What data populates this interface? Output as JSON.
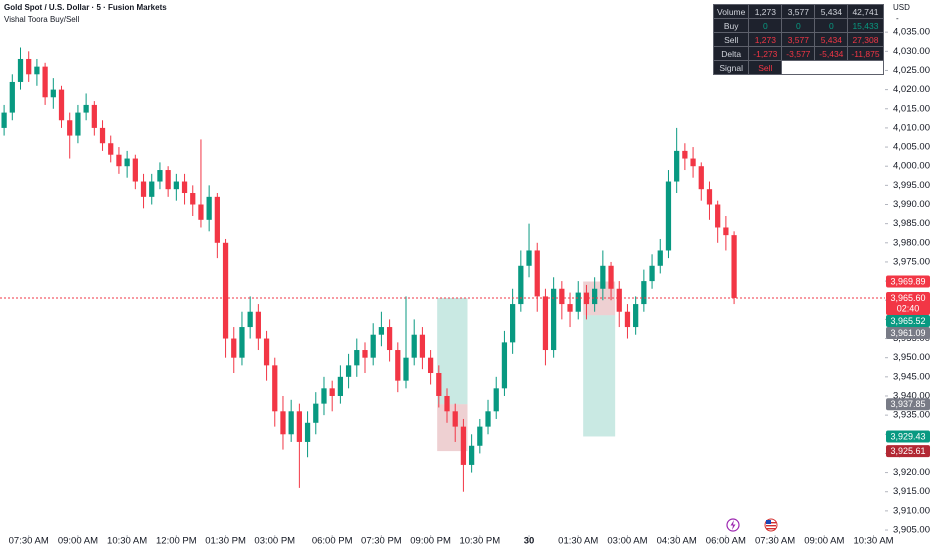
{
  "chart_data": {
    "type": "candlestick",
    "title": "Gold Spot / U.S. Dollar · 5 · Fusion Markets",
    "indicator": "Vishal Toora Buy/Sell",
    "axis_unit": "USD",
    "axis_unit_note": "-",
    "up_color": "#089981",
    "down_color": "#f23645",
    "grid": false,
    "open": [
      4010,
      4014,
      4022,
      4028,
      4024,
      4026,
      4018,
      4020,
      4012,
      4008,
      4014,
      4016,
      4010,
      4006,
      4003,
      4000,
      4002,
      3996,
      3992,
      3996,
      3999,
      3994,
      3996,
      3993,
      3990,
      3986,
      3992,
      3980,
      3955,
      3950,
      3958,
      3962,
      3955,
      3948,
      3936,
      3930,
      3936,
      3928,
      3933,
      3938,
      3942,
      3940,
      3945,
      3948,
      3952,
      3950,
      3956,
      3958,
      3952,
      3944,
      3950,
      3956,
      3950,
      3946,
      3940,
      3936,
      3932,
      3922,
      3927,
      3932,
      3936,
      3942,
      3954,
      3964,
      3974,
      3978,
      3966,
      3952,
      3968,
      3964,
      3962,
      3967,
      3964,
      3968,
      3974,
      3968,
      3962,
      3958,
      3964,
      3970,
      3974,
      3978,
      3996,
      4004,
      4002,
      4000,
      3994,
      3990,
      3984,
      3982
    ],
    "high": [
      4016,
      4024,
      4031,
      4030,
      4028,
      4027,
      4023,
      4021,
      4014,
      4016,
      4019,
      4017,
      4012,
      4008,
      4005,
      4004,
      4003,
      3998,
      3998,
      4001,
      4000,
      3998,
      3998,
      3995,
      4007,
      3995,
      3993,
      3981,
      3958,
      3962,
      3966,
      3964,
      3957,
      3950,
      3940,
      3939,
      3938,
      3936,
      3941,
      3945,
      3944,
      3948,
      3951,
      3955,
      3954,
      3959,
      3962,
      3960,
      3954,
      3966,
      3960,
      3958,
      3952,
      3948,
      3942,
      3938,
      3934,
      3930,
      3934,
      3939,
      3945,
      3957,
      3968,
      3978,
      3985,
      3980,
      3968,
      3971,
      3970,
      3967,
      3970,
      3969,
      3971,
      3978,
      3975,
      3970,
      3964,
      3966,
      3973,
      3977,
      3981,
      3999,
      4010,
      4006,
      4005,
      4001,
      3996,
      3991,
      3987,
      3983
    ],
    "low": [
      4008,
      4012,
      4020,
      4022,
      4021,
      4016,
      4015,
      4010,
      4002,
      4006,
      4012,
      4008,
      4004,
      4001,
      3998,
      3997,
      3994,
      3989,
      3990,
      3994,
      3992,
      3991,
      3990,
      3987,
      3984,
      3983,
      3976,
      3950,
      3946,
      3948,
      3955,
      3952,
      3944,
      3932,
      3926,
      3928,
      3916,
      3924,
      3930,
      3935,
      3936,
      3938,
      3942,
      3945,
      3946,
      3948,
      3953,
      3949,
      3941,
      3942,
      3948,
      3947,
      3943,
      3937,
      3933,
      3928,
      3915,
      3920,
      3925,
      3930,
      3934,
      3940,
      3951,
      3962,
      3971,
      3962,
      3948,
      3950,
      3960,
      3958,
      3960,
      3960,
      3962,
      3965,
      3965,
      3958,
      3955,
      3956,
      3962,
      3968,
      3972,
      3976,
      3993,
      3999,
      3997,
      3991,
      3986,
      3980,
      3978,
      3964
    ],
    "close": [
      4014,
      4022,
      4028,
      4024,
      4026,
      4018,
      4020,
      4012,
      4008,
      4014,
      4016,
      4010,
      4006,
      4003,
      4000,
      4002,
      3996,
      3992,
      3996,
      3999,
      3994,
      3996,
      3993,
      3990,
      3986,
      3992,
      3980,
      3955,
      3950,
      3958,
      3962,
      3955,
      3948,
      3936,
      3930,
      3936,
      3928,
      3933,
      3938,
      3942,
      3940,
      3945,
      3948,
      3952,
      3950,
      3956,
      3958,
      3952,
      3944,
      3950,
      3956,
      3950,
      3946,
      3940,
      3936,
      3932,
      3922,
      3927,
      3932,
      3936,
      3942,
      3954,
      3964,
      3974,
      3978,
      3966,
      3952,
      3968,
      3964,
      3962,
      3967,
      3964,
      3968,
      3974,
      3968,
      3962,
      3958,
      3964,
      3970,
      3974,
      3978,
      3996,
      4004,
      4002,
      4000,
      3994,
      3990,
      3984,
      3982,
      3965.6
    ],
    "xlim": [
      -0.5,
      107.4
    ],
    "xticks": [
      {
        "value": 3,
        "label": "07:30 AM"
      },
      {
        "value": 9,
        "label": "09:00 AM"
      },
      {
        "value": 15,
        "label": "10:30 AM"
      },
      {
        "value": 21,
        "label": "12:00 PM"
      },
      {
        "value": 27,
        "label": "01:30 PM"
      },
      {
        "value": 33,
        "label": "03:00 PM"
      },
      {
        "value": 40,
        "label": "06:00 PM"
      },
      {
        "value": 46,
        "label": "07:30 PM"
      },
      {
        "value": 52,
        "label": "09:00 PM"
      },
      {
        "value": 58,
        "label": "10:30 PM"
      },
      {
        "value": 64,
        "label": "30"
      },
      {
        "value": 70,
        "label": "01:30 AM"
      },
      {
        "value": 76,
        "label": "03:00 AM"
      },
      {
        "value": 82,
        "label": "04:30 AM"
      },
      {
        "value": 88,
        "label": "06:00 AM"
      },
      {
        "value": 94,
        "label": "07:30 AM"
      },
      {
        "value": 100,
        "label": "09:00 AM"
      },
      {
        "value": 106,
        "label": "10:30 AM"
      }
    ],
    "ylim": [
      3903.7,
      4043.4
    ],
    "yticks": [
      {
        "value": 3905,
        "label": "3,905.00"
      },
      {
        "value": 3910,
        "label": "3,910.00"
      },
      {
        "value": 3915,
        "label": "3,915.00"
      },
      {
        "value": 3920,
        "label": "3,920.00"
      },
      {
        "value": 3925,
        "label": "3,925.00"
      },
      {
        "value": 3930,
        "label": "3,930.00"
      },
      {
        "value": 3935,
        "label": "3,935.00"
      },
      {
        "value": 3940,
        "label": "3,940.00"
      },
      {
        "value": 3945,
        "label": "3,945.00"
      },
      {
        "value": 3950,
        "label": "3,950.00"
      },
      {
        "value": 3955,
        "label": "3,955.00"
      },
      {
        "value": 3960,
        "label": "3,960.00"
      },
      {
        "value": 3965,
        "label": "3,965.00"
      },
      {
        "value": 3970,
        "label": "3,970.00"
      },
      {
        "value": 3975,
        "label": "3,975.00"
      },
      {
        "value": 3980,
        "label": "3,980.00"
      },
      {
        "value": 3985,
        "label": "3,985.00"
      },
      {
        "value": 3990,
        "label": "3,990.00"
      },
      {
        "value": 3995,
        "label": "3,995.00"
      },
      {
        "value": 4000,
        "label": "4,000.00"
      },
      {
        "value": 4005,
        "label": "4,005.00"
      },
      {
        "value": 4010,
        "label": "4,010.00"
      },
      {
        "value": 4015,
        "label": "4,015.00"
      },
      {
        "value": 4020,
        "label": "4,020.00"
      },
      {
        "value": 4025,
        "label": "4,025.00"
      },
      {
        "value": 4030,
        "label": "4,030.00"
      },
      {
        "value": 4035,
        "label": "4,035.00"
      }
    ],
    "current_price": 3965.6,
    "price_labels": [
      {
        "value": 3969.89,
        "label": "3,969.89",
        "color": "#f23645"
      },
      {
        "value": 3965.6,
        "label": "3,965.60",
        "color": "#f23645",
        "countdown": "02:40"
      },
      {
        "value": 3965.52,
        "label": "3,965.52",
        "color": "#089981"
      },
      {
        "value": 3961.09,
        "label": "3,961.09",
        "color": "#787b86"
      },
      {
        "value": 3937.85,
        "label": "3,937.85",
        "color": "#787b86"
      },
      {
        "value": 3929.43,
        "label": "3,929.43",
        "color": "#089981"
      },
      {
        "value": 3925.61,
        "label": "3,925.61",
        "color": "#b22833"
      }
    ],
    "zones": [
      {
        "x": [
          52.8,
          56.5
        ],
        "y": [
          3937.85,
          3965.6
        ],
        "color": "#089981"
      },
      {
        "x": [
          52.8,
          56.5
        ],
        "y": [
          3925.61,
          3937.85
        ],
        "color": "#b22833"
      },
      {
        "x": [
          70.6,
          74.5
        ],
        "y": [
          3929.43,
          3961.09
        ],
        "color": "#089981"
      },
      {
        "x": [
          70.6,
          74.5
        ],
        "y": [
          3961.09,
          3969.89
        ],
        "color": "#b22833"
      }
    ],
    "table": {
      "rows": [
        [
          "Volume",
          "1,273",
          "3,577",
          "5,434",
          "42,741"
        ],
        [
          "Buy",
          "0",
          "0",
          "0",
          "15,433"
        ],
        [
          "Sell",
          "1,273",
          "3,577",
          "5,434",
          "27,308"
        ],
        [
          "Delta",
          "-1,273",
          "-3,577",
          "-5,434",
          "-11,875"
        ],
        [
          "Signal",
          "Sell"
        ]
      ]
    }
  }
}
